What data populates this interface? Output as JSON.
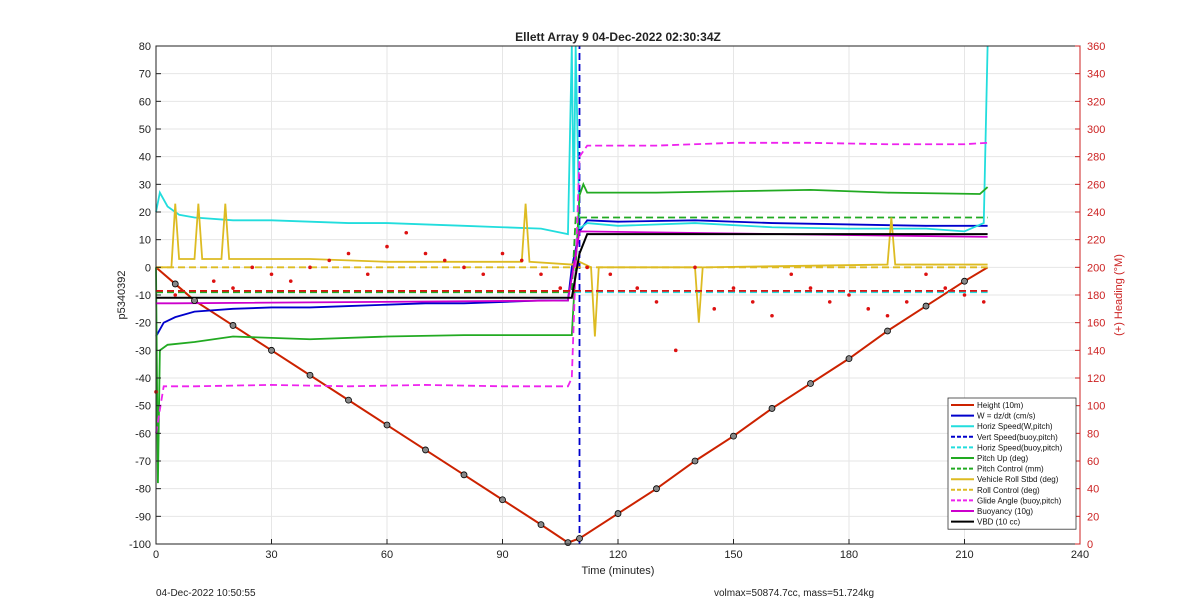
{
  "chart_data": {
    "type": "line",
    "title": "Ellett Array 9 04-Dec-2022 02:30:34Z",
    "xlabel": "Time (minutes)",
    "ylabel_left": "p5340392",
    "ylabel_right": "(+) Heading (°M)",
    "xlim": [
      0,
      240
    ],
    "ylim_left": [
      -100,
      80
    ],
    "ylim_right": [
      0,
      360
    ],
    "x_ticks": [
      0,
      30,
      60,
      90,
      120,
      150,
      180,
      210,
      240
    ],
    "y_ticks_left": [
      -100,
      -90,
      -80,
      -70,
      -60,
      -50,
      -40,
      -30,
      -20,
      -10,
      0,
      10,
      20,
      30,
      40,
      50,
      60,
      70,
      80
    ],
    "y_ticks_right": [
      0,
      20,
      40,
      60,
      80,
      100,
      120,
      140,
      160,
      180,
      200,
      220,
      240,
      260,
      280,
      300,
      320,
      340,
      360
    ],
    "grid": true,
    "legend_position": "bottom-right",
    "series": [
      {
        "name": "Height (10m)",
        "color": "#cc2200",
        "style": "solid",
        "axis": "left",
        "x": [
          0,
          5,
          10,
          20,
          30,
          40,
          50,
          60,
          70,
          80,
          90,
          100,
          107,
          110,
          120,
          130,
          140,
          150,
          160,
          170,
          180,
          190,
          200,
          210,
          216
        ],
        "y": [
          0,
          -6,
          -12,
          -21,
          -30,
          -39,
          -48,
          -57,
          -66,
          -75,
          -84,
          -93,
          -99.5,
          -98,
          -89,
          -80,
          -70,
          -61,
          -51,
          -42,
          -33,
          -23,
          -14,
          -5,
          0
        ]
      },
      {
        "name": "W = dz/dt (cm/s)",
        "color": "#0000cc",
        "style": "solid",
        "axis": "left",
        "x": [
          0,
          2,
          5,
          10,
          20,
          30,
          40,
          50,
          60,
          70,
          80,
          90,
          100,
          107,
          108,
          110,
          112,
          120,
          140,
          160,
          180,
          200,
          216
        ],
        "y": [
          -25,
          -20,
          -18,
          -16,
          -15,
          -14.5,
          -14.5,
          -14,
          -13.5,
          -13,
          -13,
          -12.5,
          -12,
          -12,
          0,
          13,
          17,
          16.5,
          17,
          16,
          15.5,
          15,
          15
        ]
      },
      {
        "name": "Horiz Speed(W,pitch)",
        "color": "#22dddd",
        "style": "solid",
        "axis": "left",
        "x": [
          0,
          1,
          3,
          6,
          10,
          20,
          30,
          40,
          50,
          60,
          70,
          80,
          90,
          100,
          107,
          108,
          108.5,
          109,
          110,
          112,
          120,
          140,
          160,
          180,
          200,
          210,
          215,
          216
        ],
        "y": [
          20,
          27,
          22,
          19,
          18,
          17,
          17,
          16.5,
          16,
          16,
          15.5,
          15,
          14.5,
          14,
          12,
          80,
          20,
          80,
          14,
          16,
          15,
          16,
          14.5,
          14,
          14,
          13,
          16,
          80
        ]
      },
      {
        "name": "Vert Speed(buoy,pitch)",
        "color": "#0000cc",
        "style": "dashed",
        "axis": "left",
        "x": [
          110,
          110
        ],
        "y": [
          -100,
          80
        ]
      },
      {
        "name": "Horiz Speed(buoy,pitch)",
        "color": "#22dddd",
        "style": "dashed",
        "axis": "left",
        "x": [
          0,
          216
        ],
        "y": [
          -9,
          -9
        ]
      },
      {
        "name": "Pitch Up (deg)",
        "color": "#22aa22",
        "style": "solid",
        "axis": "left",
        "x": [
          0,
          0.5,
          1,
          3,
          10,
          20,
          40,
          60,
          80,
          100,
          108,
          109,
          110,
          111,
          112,
          130,
          150,
          170,
          190,
          214,
          216
        ],
        "y": [
          0,
          -78,
          -30,
          -28,
          -27,
          -25,
          -26,
          -25,
          -24.5,
          -24.5,
          -24.5,
          0,
          26,
          30,
          27,
          27,
          27.5,
          28,
          27,
          26.5,
          29
        ]
      },
      {
        "name": "Pitch Control (mm)",
        "color": "#22aa22",
        "style": "dashed",
        "axis": "left",
        "x": [
          0,
          108,
          109,
          216
        ],
        "y": [
          -9,
          -9,
          18,
          18
        ]
      },
      {
        "name": "Vehicle Roll Stbd (deg)",
        "color": "#ddbb22",
        "style": "solid",
        "axis": "left",
        "x": [
          0,
          4,
          5,
          6,
          10,
          11,
          12,
          17,
          18,
          19,
          30,
          40,
          60,
          80,
          95,
          96,
          97,
          108,
          110,
          113,
          114,
          115,
          140,
          141,
          142,
          190,
          191,
          192,
          216
        ],
        "y": [
          0,
          0,
          23,
          3,
          3,
          23,
          3,
          3,
          23,
          3,
          3,
          3,
          2,
          2,
          2,
          23,
          2,
          1,
          2,
          0,
          -25,
          0,
          0,
          -20,
          0,
          1,
          18,
          1,
          1
        ]
      },
      {
        "name": "Roll Control (deg)",
        "color": "#ddbb22",
        "style": "dashed",
        "axis": "left",
        "x": [
          0,
          108,
          109,
          216
        ],
        "y": [
          0,
          0,
          0,
          0
        ]
      },
      {
        "name": "Glide Angle (buoy,pitch)",
        "color": "#ee22ee",
        "style": "dashed",
        "axis": "left",
        "x": [
          0,
          2,
          10,
          30,
          50,
          70,
          90,
          107,
          108,
          109,
          110,
          112,
          130,
          150,
          170,
          190,
          210,
          216
        ],
        "y": [
          -60,
          -43,
          -43,
          -42.5,
          -43,
          -42.5,
          -43,
          -43,
          -40,
          0,
          40,
          44,
          44,
          45,
          45,
          44.5,
          44.5,
          45
        ]
      },
      {
        "name": "Buoyancy (10g)",
        "color": "#cc00cc",
        "style": "solid",
        "axis": "left",
        "x": [
          0,
          5,
          107,
          110,
          216
        ],
        "y": [
          -13,
          -13,
          -12,
          13,
          11
        ]
      },
      {
        "name": "VBD (10 cc)",
        "color": "#000000",
        "style": "solid",
        "axis": "left",
        "x": [
          0,
          3,
          108,
          110,
          112,
          216
        ],
        "y": [
          -11,
          -11,
          -11,
          5,
          12,
          12
        ]
      },
      {
        "name": "",
        "color": "#dd1111",
        "style": "dotted",
        "axis": "right",
        "x": [
          0,
          5,
          10,
          15,
          20,
          25,
          30,
          35,
          40,
          45,
          50,
          55,
          60,
          65,
          70,
          75,
          80,
          85,
          90,
          95,
          100,
          105,
          112,
          118,
          125,
          130,
          135,
          140,
          145,
          150,
          155,
          160,
          165,
          170,
          175,
          180,
          185,
          190,
          195,
          200,
          205,
          210,
          215
        ],
        "y": [
          110,
          180,
          175,
          190,
          185,
          200,
          195,
          190,
          200,
          205,
          210,
          195,
          215,
          225,
          210,
          205,
          200,
          195,
          210,
          205,
          195,
          185,
          200,
          195,
          185,
          175,
          140,
          200,
          170,
          185,
          175,
          165,
          195,
          185,
          175,
          180,
          170,
          165,
          175,
          195,
          185,
          180,
          175
        ]
      },
      {
        "name": "",
        "color": "#dd1111",
        "style": "dashed",
        "axis": "right",
        "x": [
          0,
          216
        ],
        "y": [
          183,
          183
        ]
      }
    ]
  },
  "footer": {
    "left": "04-Dec-2022 10:50:55",
    "right": "volmax=50874.7cc, mass=51.724kg"
  }
}
